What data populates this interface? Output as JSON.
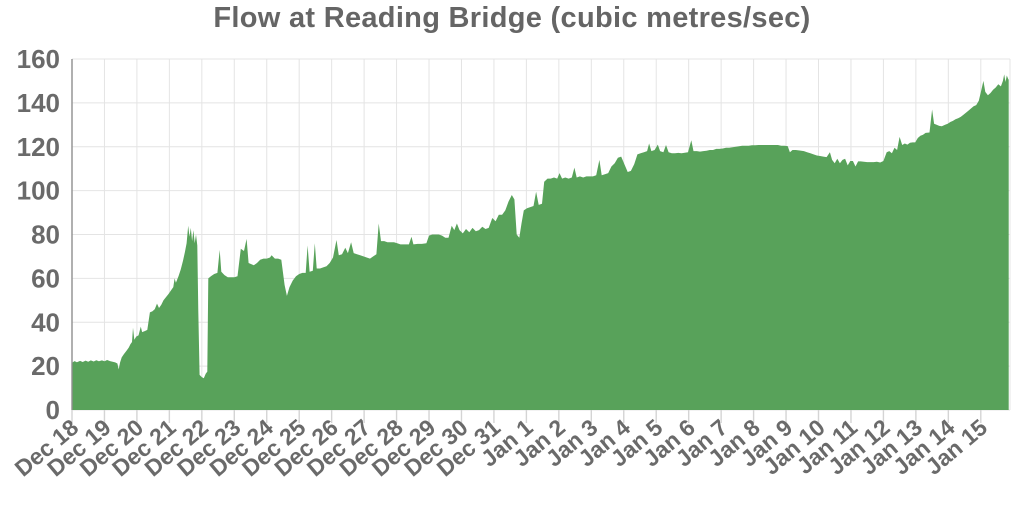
{
  "chart_data": {
    "type": "area",
    "title": "Flow at Reading Bridge (cubic metres/sec)",
    "series_name": "Flow",
    "units": "cubic metres/sec",
    "xlabel": "",
    "ylabel": "",
    "legend": "none",
    "grid": true,
    "ylim": [
      0,
      160
    ],
    "y_ticks": [
      0,
      20,
      40,
      60,
      80,
      100,
      120,
      140,
      160
    ],
    "x_tick_labels": [
      "Dec 18",
      "Dec 19",
      "Dec 20",
      "Dec 21",
      "Dec 22",
      "Dec 23",
      "Dec 24",
      "Dec 25",
      "Dec 26",
      "Dec 27",
      "Dec 28",
      "Dec 29",
      "Dec 30",
      "Dec 31",
      "Jan 1",
      "Jan 2",
      "Jan 3",
      "Jan 4",
      "Jan 5",
      "Jan 6",
      "Jan 7",
      "Jan 8",
      "Jan 9",
      "Jan 10",
      "Jan 11",
      "Jan 12",
      "Jan 13",
      "Jan 14",
      "Jan 15"
    ],
    "x_domain_days": [
      0,
      28.9
    ],
    "colors": {
      "area": "#58a25a",
      "grid": "#e4e4e4",
      "axis": "#8f8f8f",
      "tick": "#d4d4d4",
      "label": "#6a6a6a",
      "title": "#656565"
    },
    "points": [
      [
        0,
        21.5
      ],
      [
        0.08,
        22.3
      ],
      [
        0.15,
        21.8
      ],
      [
        0.25,
        22.4
      ],
      [
        0.33,
        21.9
      ],
      [
        0.42,
        22.5
      ],
      [
        0.5,
        22
      ],
      [
        0.58,
        22.6
      ],
      [
        0.67,
        22.1
      ],
      [
        0.75,
        22.7
      ],
      [
        0.83,
        22.2
      ],
      [
        0.92,
        22.6
      ],
      [
        1,
        22.2
      ],
      [
        1.08,
        22.8
      ],
      [
        1.17,
        22.3
      ],
      [
        1.25,
        22
      ],
      [
        1.33,
        21.7
      ],
      [
        1.4,
        21.2
      ],
      [
        1.44,
        18.5
      ],
      [
        1.48,
        21.5
      ],
      [
        1.53,
        24
      ],
      [
        1.6,
        25.5
      ],
      [
        1.68,
        27
      ],
      [
        1.75,
        28.5
      ],
      [
        1.8,
        30
      ],
      [
        1.85,
        31
      ],
      [
        1.88,
        37.5
      ],
      [
        1.92,
        32
      ],
      [
        1.98,
        33.5
      ],
      [
        2.05,
        34
      ],
      [
        2.12,
        38
      ],
      [
        2.16,
        35.5
      ],
      [
        2.25,
        36
      ],
      [
        2.32,
        36.5
      ],
      [
        2.4,
        44.5
      ],
      [
        2.48,
        45
      ],
      [
        2.55,
        46
      ],
      [
        2.62,
        48.5
      ],
      [
        2.68,
        46.5
      ],
      [
        2.75,
        48
      ],
      [
        2.82,
        50
      ],
      [
        2.9,
        51.5
      ],
      [
        2.98,
        53
      ],
      [
        3.05,
        54.5
      ],
      [
        3.12,
        56
      ],
      [
        3.16,
        60
      ],
      [
        3.2,
        58
      ],
      [
        3.28,
        61
      ],
      [
        3.35,
        64
      ],
      [
        3.42,
        68
      ],
      [
        3.48,
        72
      ],
      [
        3.53,
        76
      ],
      [
        3.58,
        84
      ],
      [
        3.62,
        79
      ],
      [
        3.66,
        83
      ],
      [
        3.7,
        77
      ],
      [
        3.74,
        82
      ],
      [
        3.78,
        76
      ],
      [
        3.82,
        80
      ],
      [
        3.86,
        75
      ],
      [
        3.89,
        45
      ],
      [
        3.93,
        16
      ],
      [
        4,
        15
      ],
      [
        4.06,
        14.5
      ],
      [
        4.12,
        16.5
      ],
      [
        4.17,
        17.5
      ],
      [
        4.2,
        60
      ],
      [
        4.28,
        61
      ],
      [
        4.38,
        62
      ],
      [
        4.48,
        62.5
      ],
      [
        4.55,
        73
      ],
      [
        4.6,
        63
      ],
      [
        4.7,
        61.5
      ],
      [
        4.8,
        60.5
      ],
      [
        4.9,
        60.5
      ],
      [
        5,
        60.5
      ],
      [
        5.1,
        61
      ],
      [
        5.2,
        73.5
      ],
      [
        5.3,
        72.5
      ],
      [
        5.38,
        78
      ],
      [
        5.44,
        67
      ],
      [
        5.52,
        66.5
      ],
      [
        5.6,
        66
      ],
      [
        5.7,
        67
      ],
      [
        5.8,
        68.5
      ],
      [
        5.9,
        69
      ],
      [
        6,
        69
      ],
      [
        6.1,
        69.5
      ],
      [
        6.15,
        70.5
      ],
      [
        6.25,
        69
      ],
      [
        6.35,
        69
      ],
      [
        6.45,
        68.5
      ],
      [
        6.55,
        57
      ],
      [
        6.62,
        52
      ],
      [
        6.7,
        56
      ],
      [
        6.8,
        59
      ],
      [
        6.9,
        61
      ],
      [
        7,
        62
      ],
      [
        7.1,
        62.5
      ],
      [
        7.2,
        62.5
      ],
      [
        7.26,
        75
      ],
      [
        7.32,
        63
      ],
      [
        7.42,
        63.5
      ],
      [
        7.48,
        76
      ],
      [
        7.54,
        64.5
      ],
      [
        7.64,
        64.5
      ],
      [
        7.74,
        65
      ],
      [
        7.84,
        65.5
      ],
      [
        7.94,
        67
      ],
      [
        8.04,
        69.5
      ],
      [
        8.15,
        77.5
      ],
      [
        8.22,
        70.5
      ],
      [
        8.32,
        71
      ],
      [
        8.42,
        74
      ],
      [
        8.5,
        71.5
      ],
      [
        8.6,
        76.5
      ],
      [
        8.68,
        71.5
      ],
      [
        8.78,
        71
      ],
      [
        8.88,
        70.5
      ],
      [
        8.98,
        70
      ],
      [
        9.08,
        69.5
      ],
      [
        9.18,
        69
      ],
      [
        9.28,
        70
      ],
      [
        9.38,
        71
      ],
      [
        9.45,
        85
      ],
      [
        9.52,
        77
      ],
      [
        9.62,
        77
      ],
      [
        9.72,
        76.5
      ],
      [
        9.82,
        76.5
      ],
      [
        9.92,
        76.5
      ],
      [
        10.02,
        76
      ],
      [
        10.12,
        75.5
      ],
      [
        10.25,
        75.5
      ],
      [
        10.38,
        75.5
      ],
      [
        10.46,
        79
      ],
      [
        10.52,
        75.5
      ],
      [
        10.65,
        75.7
      ],
      [
        10.78,
        75.7
      ],
      [
        10.92,
        76
      ],
      [
        11,
        79.5
      ],
      [
        11.1,
        80
      ],
      [
        11.2,
        80
      ],
      [
        11.3,
        80
      ],
      [
        11.4,
        79.5
      ],
      [
        11.5,
        78.5
      ],
      [
        11.6,
        78.5
      ],
      [
        11.7,
        84
      ],
      [
        11.78,
        82
      ],
      [
        11.86,
        85
      ],
      [
        11.94,
        82
      ],
      [
        12.04,
        80.5
      ],
      [
        12.14,
        82.5
      ],
      [
        12.24,
        81
      ],
      [
        12.34,
        83
      ],
      [
        12.44,
        81.5
      ],
      [
        12.54,
        82
      ],
      [
        12.64,
        83.5
      ],
      [
        12.74,
        82.5
      ],
      [
        12.84,
        83
      ],
      [
        12.95,
        87.5
      ],
      [
        13.05,
        86
      ],
      [
        13.15,
        89
      ],
      [
        13.25,
        89
      ],
      [
        13.35,
        91
      ],
      [
        13.45,
        95
      ],
      [
        13.55,
        98
      ],
      [
        13.63,
        96
      ],
      [
        13.7,
        80
      ],
      [
        13.78,
        78.5
      ],
      [
        13.85,
        85
      ],
      [
        13.92,
        91
      ],
      [
        14.02,
        92
      ],
      [
        14.12,
        92.5
      ],
      [
        14.22,
        93
      ],
      [
        14.3,
        99.5
      ],
      [
        14.38,
        93.5
      ],
      [
        14.48,
        94
      ],
      [
        14.55,
        104
      ],
      [
        14.65,
        105.5
      ],
      [
        14.75,
        105.5
      ],
      [
        14.85,
        106
      ],
      [
        14.95,
        105.5
      ],
      [
        15.02,
        108
      ],
      [
        15.1,
        105.5
      ],
      [
        15.2,
        106
      ],
      [
        15.3,
        105.5
      ],
      [
        15.4,
        106
      ],
      [
        15.48,
        110.5
      ],
      [
        15.55,
        106
      ],
      [
        15.65,
        106.5
      ],
      [
        15.75,
        106
      ],
      [
        15.85,
        106.5
      ],
      [
        15.95,
        106.5
      ],
      [
        16.05,
        106.5
      ],
      [
        16.15,
        107
      ],
      [
        16.25,
        114
      ],
      [
        16.32,
        107
      ],
      [
        16.42,
        107.5
      ],
      [
        16.52,
        108
      ],
      [
        16.62,
        111
      ],
      [
        16.72,
        112.5
      ],
      [
        16.82,
        115
      ],
      [
        16.92,
        115.5
      ],
      [
        17.02,
        112
      ],
      [
        17.12,
        108.5
      ],
      [
        17.22,
        109
      ],
      [
        17.32,
        112
      ],
      [
        17.42,
        116.5
      ],
      [
        17.52,
        117
      ],
      [
        17.62,
        117.5
      ],
      [
        17.72,
        118
      ],
      [
        17.78,
        121.5
      ],
      [
        17.85,
        118
      ],
      [
        17.95,
        118.5
      ],
      [
        18.05,
        121
      ],
      [
        18.12,
        118
      ],
      [
        18.22,
        117.5
      ],
      [
        18.3,
        120.8
      ],
      [
        18.38,
        117.5
      ],
      [
        18.48,
        117
      ],
      [
        18.58,
        117
      ],
      [
        18.68,
        117.2
      ],
      [
        18.78,
        117
      ],
      [
        18.88,
        117.3
      ],
      [
        18.98,
        117.5
      ],
      [
        19.08,
        123
      ],
      [
        19.15,
        118
      ],
      [
        19.25,
        118
      ],
      [
        19.35,
        117.8
      ],
      [
        19.45,
        118
      ],
      [
        19.55,
        118.2
      ],
      [
        19.65,
        118.5
      ],
      [
        19.75,
        118.5
      ],
      [
        19.85,
        119
      ],
      [
        19.95,
        119
      ],
      [
        20.05,
        119.2
      ],
      [
        20.15,
        119.5
      ],
      [
        20.25,
        119.5
      ],
      [
        20.35,
        119.8
      ],
      [
        20.45,
        120
      ],
      [
        20.55,
        120.2
      ],
      [
        20.65,
        120.5
      ],
      [
        20.75,
        120.5
      ],
      [
        20.85,
        120.5
      ],
      [
        20.95,
        120.7
      ],
      [
        21.05,
        120.7
      ],
      [
        21.15,
        120.8
      ],
      [
        21.25,
        120.8
      ],
      [
        21.35,
        120.8
      ],
      [
        21.45,
        120.8
      ],
      [
        21.55,
        120.8
      ],
      [
        21.65,
        120.8
      ],
      [
        21.75,
        120.8
      ],
      [
        21.85,
        120.5
      ],
      [
        21.95,
        120.5
      ],
      [
        22.05,
        120.3
      ],
      [
        22.12,
        117.5
      ],
      [
        22.2,
        118.5
      ],
      [
        22.3,
        118.5
      ],
      [
        22.42,
        118.3
      ],
      [
        22.55,
        118
      ],
      [
        22.65,
        117.5
      ],
      [
        22.75,
        117
      ],
      [
        22.85,
        116.5
      ],
      [
        22.95,
        116
      ],
      [
        23.05,
        115.8
      ],
      [
        23.15,
        115.5
      ],
      [
        23.25,
        115.3
      ],
      [
        23.35,
        117.5
      ],
      [
        23.42,
        114
      ],
      [
        23.5,
        112.5
      ],
      [
        23.58,
        114.5
      ],
      [
        23.66,
        112.5
      ],
      [
        23.74,
        114
      ],
      [
        23.82,
        114.5
      ],
      [
        23.9,
        111.5
      ],
      [
        23.98,
        113.5
      ],
      [
        24.06,
        113.5
      ],
      [
        24.14,
        111
      ],
      [
        24.22,
        113.3
      ],
      [
        24.3,
        113.3
      ],
      [
        24.4,
        113.2
      ],
      [
        24.5,
        113
      ],
      [
        24.6,
        113
      ],
      [
        24.7,
        113
      ],
      [
        24.8,
        113.2
      ],
      [
        24.9,
        112.8
      ],
      [
        25,
        113.5
      ],
      [
        25.1,
        117.5
      ],
      [
        25.18,
        118
      ],
      [
        25.26,
        117
      ],
      [
        25.34,
        119.5
      ],
      [
        25.42,
        118.5
      ],
      [
        25.5,
        124.5
      ],
      [
        25.58,
        120.8
      ],
      [
        25.66,
        121.5
      ],
      [
        25.74,
        121
      ],
      [
        25.82,
        121.8
      ],
      [
        25.9,
        122
      ],
      [
        25.98,
        122
      ],
      [
        26.06,
        124
      ],
      [
        26.14,
        125
      ],
      [
        26.22,
        125.5
      ],
      [
        26.3,
        126.3
      ],
      [
        26.42,
        126.5
      ],
      [
        26.5,
        137
      ],
      [
        26.56,
        130.5
      ],
      [
        26.64,
        130
      ],
      [
        26.72,
        129.5
      ],
      [
        26.8,
        129.3
      ],
      [
        26.9,
        130
      ],
      [
        26.98,
        130.5
      ],
      [
        27.06,
        131.3
      ],
      [
        27.14,
        131.8
      ],
      [
        27.22,
        132.5
      ],
      [
        27.3,
        133
      ],
      [
        27.38,
        133.6
      ],
      [
        27.46,
        134.5
      ],
      [
        27.54,
        135.5
      ],
      [
        27.62,
        136.5
      ],
      [
        27.7,
        137.5
      ],
      [
        27.78,
        138.5
      ],
      [
        27.86,
        139
      ],
      [
        27.94,
        141
      ],
      [
        28.02,
        146
      ],
      [
        28.08,
        150
      ],
      [
        28.14,
        145
      ],
      [
        28.22,
        143.5
      ],
      [
        28.3,
        144.5
      ],
      [
        28.38,
        146
      ],
      [
        28.46,
        147
      ],
      [
        28.54,
        148.5
      ],
      [
        28.62,
        147.5
      ],
      [
        28.68,
        150
      ],
      [
        28.72,
        153
      ],
      [
        28.76,
        149.5
      ],
      [
        28.8,
        152.5
      ],
      [
        28.84,
        151
      ],
      [
        28.86,
        150.5
      ]
    ]
  }
}
